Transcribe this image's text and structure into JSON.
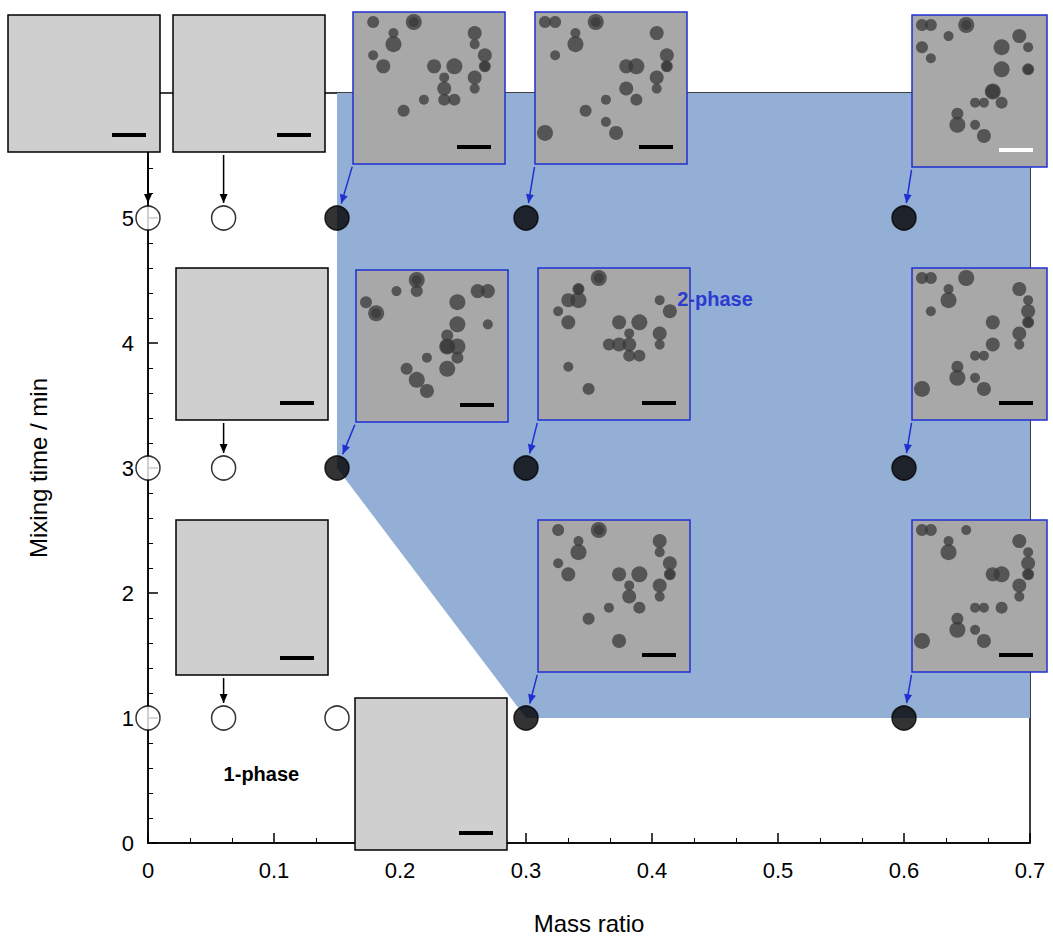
{
  "chart_data": {
    "type": "scatter",
    "x_label": "Mass ratio",
    "y_label": "Mixing time / min",
    "xlim": [
      0,
      0.7
    ],
    "xticks": [
      0,
      0.1,
      0.2,
      0.3,
      0.4,
      0.5,
      0.6,
      0.7
    ],
    "ylim": [
      0,
      6
    ],
    "yticks": [
      0,
      1,
      2,
      3,
      4,
      5
    ],
    "grid": false,
    "series": [
      {
        "name": "1-phase",
        "marker": "open circle",
        "color": "#000000",
        "x": [
          0,
          0.06,
          0,
          0.06,
          0,
          0.06,
          0.15
        ],
        "y": [
          5,
          5,
          3,
          3,
          1,
          1,
          1
        ]
      },
      {
        "name": "2-phase",
        "marker": "filled circle",
        "color": "#000000",
        "x": [
          0.15,
          0.3,
          0.6,
          0.15,
          0.3,
          0.6,
          0.3,
          0.6
        ],
        "y": [
          5,
          5,
          5,
          3,
          3,
          3,
          1,
          1
        ]
      }
    ],
    "region": {
      "color": "#94afd6",
      "x": [
        0.15,
        0.15,
        0.3,
        0.7,
        0.7
      ],
      "y": [
        6,
        3,
        1,
        1,
        6
      ]
    },
    "annotations": [
      {
        "text": "2-phase",
        "x": 0.45,
        "y": 4.35,
        "color": "#2a3ccf"
      },
      {
        "text": "1-phase",
        "x": 0.09,
        "y": 0.55,
        "color": "#000000"
      }
    ]
  }
}
